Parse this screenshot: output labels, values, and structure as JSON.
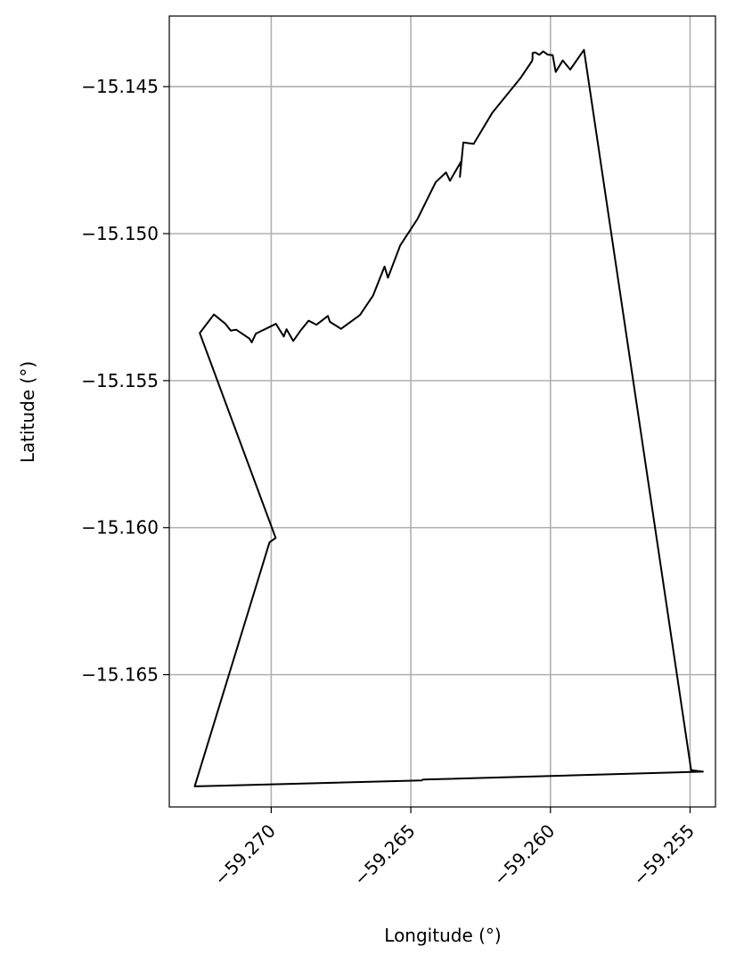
{
  "chart_data": {
    "type": "line",
    "title": "",
    "xlabel": "Longitude (°)",
    "ylabel": "Latitude (°)",
    "xlim": [
      -59.27365,
      -59.25409
    ],
    "ylim": [
      -15.1695,
      -15.1426
    ],
    "xticks": [
      -59.27,
      -59.265,
      -59.26,
      -59.255
    ],
    "xtick_labels": [
      "−59.270",
      "−59.265",
      "−59.260",
      "−59.255"
    ],
    "yticks": [
      -15.145,
      -15.15,
      -15.155,
      -15.16,
      -15.165
    ],
    "ytick_labels": [
      "−15.145",
      "−15.150",
      "−15.155",
      "−15.160",
      "−15.165"
    ],
    "grid": true,
    "colors": {
      "boundary": "#000000",
      "grid": "#b0b0b0",
      "frame": "#000000"
    },
    "series": [
      {
        "x": [
          -59.27256,
          -59.26984,
          -59.27006,
          -59.27274,
          -59.26462,
          -59.26456,
          -59.25454,
          -59.25496,
          -59.2588,
          -59.25929,
          -59.25956,
          -59.25981,
          -59.25992,
          -59.2601,
          -59.26026,
          -59.2604,
          -59.26054,
          -59.26064,
          -59.26064,
          -59.26066,
          -59.26108,
          -59.26209,
          -59.26275,
          -59.26312,
          -59.26324,
          -59.2632,
          -59.2636,
          -59.26374,
          -59.26411,
          -59.26476,
          -59.26538,
          -59.26582,
          -59.26594,
          -59.26635,
          -59.26682,
          -59.2675,
          -59.2679,
          -59.26797,
          -59.26838,
          -59.26866,
          -59.26895,
          -59.26921,
          -59.26945,
          -59.26955,
          -59.26983,
          -59.27055,
          -59.2707,
          -59.27078,
          -59.27125,
          -59.27145,
          -59.27164,
          -59.27205
        ],
        "y": [
          -15.15338,
          -15.16035,
          -15.1605,
          -15.1688,
          -15.1686,
          -15.16857,
          -15.1683,
          -15.16825,
          -15.14375,
          -15.14442,
          -15.14411,
          -15.1445,
          -15.14393,
          -15.14391,
          -15.1438,
          -15.14392,
          -15.14384,
          -15.14386,
          -15.14405,
          -15.14413,
          -15.14472,
          -15.1459,
          -15.14695,
          -15.1469,
          -15.14807,
          -15.14755,
          -15.1482,
          -15.14792,
          -15.14825,
          -15.1495,
          -15.1504,
          -15.1515,
          -15.15112,
          -15.1521,
          -15.15277,
          -15.15324,
          -15.153,
          -15.1528,
          -15.1531,
          -15.15296,
          -15.1533,
          -15.15365,
          -15.15325,
          -15.1535,
          -15.15307,
          -15.1534,
          -15.1537,
          -15.15357,
          -15.15327,
          -15.1533,
          -15.15307,
          -15.15275
        ]
      }
    ]
  }
}
